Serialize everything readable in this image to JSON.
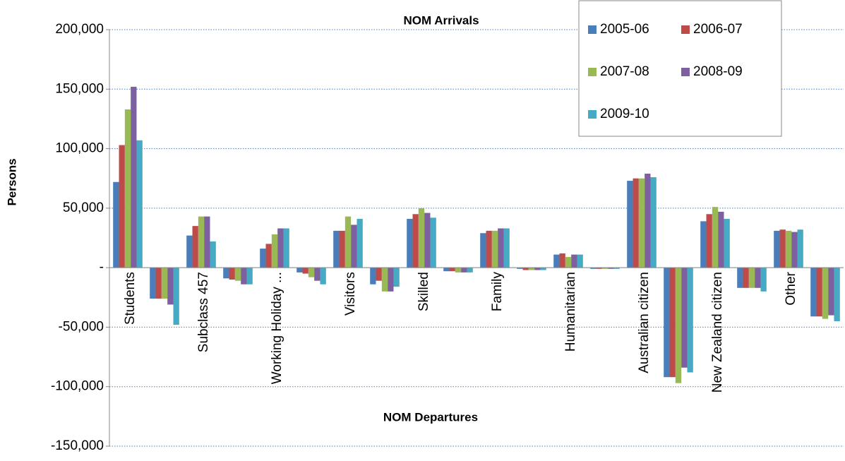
{
  "chart_data": {
    "type": "bar",
    "title": "NOM Arrivals",
    "annotations": [
      "NOM Departures"
    ],
    "y_label": "Persons",
    "categories": [
      "Students",
      null,
      "Subclass 457",
      null,
      "Working Holiday ...",
      null,
      "Visitors",
      null,
      "Skilled",
      null,
      "Family",
      null,
      "Humanitarian",
      null,
      "Australian citizen",
      null,
      "New Zealand citizen",
      null,
      "Other",
      null
    ],
    "series": [
      {
        "name": "2005-06",
        "color": "#4a7ebb",
        "values": [
          72000,
          -26000,
          27000,
          -9000,
          16000,
          -4000,
          31000,
          -14000,
          41000,
          -3000,
          29000,
          -1000,
          11000,
          -1000,
          73000,
          -92000,
          39000,
          -17000,
          31000,
          -41000
        ]
      },
      {
        "name": "2006-07",
        "color": "#be4b48",
        "values": [
          103000,
          -26000,
          35000,
          -10000,
          20000,
          -5000,
          31000,
          -11000,
          45000,
          -3000,
          31000,
          -2000,
          12000,
          -1000,
          75000,
          -92000,
          45000,
          -17000,
          32000,
          -41000
        ]
      },
      {
        "name": "2007-08",
        "color": "#98b954",
        "values": [
          133000,
          -26000,
          43000,
          -11000,
          28000,
          -8000,
          43000,
          -20000,
          50000,
          -4000,
          31000,
          -2000,
          9000,
          -1000,
          75000,
          -97000,
          51000,
          -17000,
          31000,
          -43000
        ]
      },
      {
        "name": "2008-09",
        "color": "#7d60a0",
        "values": [
          152000,
          -31000,
          43000,
          -14000,
          33000,
          -11000,
          36000,
          -20000,
          46000,
          -4000,
          33000,
          -2000,
          11000,
          -1000,
          79000,
          -84000,
          47000,
          -17000,
          30000,
          -40000
        ]
      },
      {
        "name": "2009-10",
        "color": "#46aac5",
        "values": [
          107000,
          -48000,
          22000,
          -14000,
          33000,
          -14000,
          41000,
          -16000,
          42000,
          -4000,
          33000,
          -2000,
          11000,
          -1000,
          76000,
          -88000,
          41000,
          -20000,
          32000,
          -45000
        ]
      }
    ],
    "ylim": [
      -150000,
      200000
    ],
    "yticks": [
      {
        "value": -150000,
        "label": "-150,000"
      },
      {
        "value": -100000,
        "label": "-100,000"
      },
      {
        "value": -50000,
        "label": "-50,000"
      },
      {
        "value": 0,
        "label": "-"
      },
      {
        "value": 50000,
        "label": "50,000"
      },
      {
        "value": 100000,
        "label": "100,000"
      },
      {
        "value": 150000,
        "label": "150,000"
      },
      {
        "value": 200000,
        "label": "200,000"
      }
    ],
    "grid": true,
    "legend": "top-right"
  }
}
